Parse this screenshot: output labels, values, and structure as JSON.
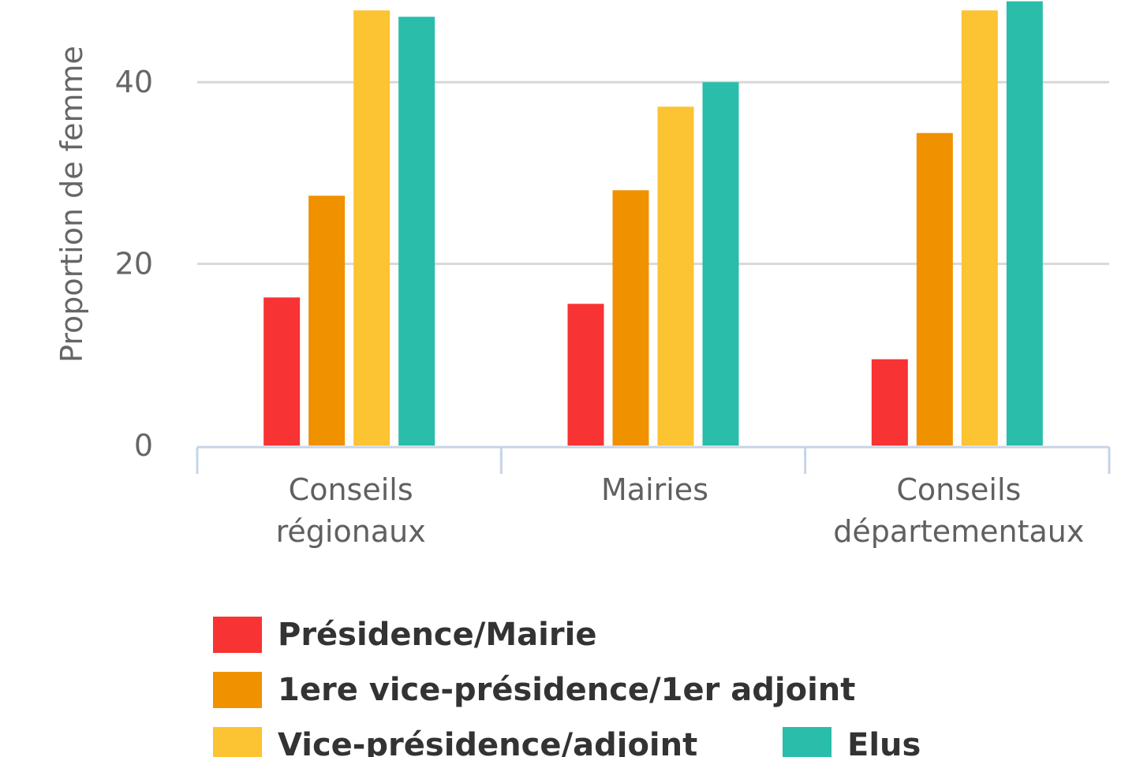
{
  "chart_data": {
    "type": "bar",
    "ylabel": "Proportion de femme",
    "yticks": [
      "0",
      "20",
      "40"
    ],
    "ylim": [
      0,
      48
    ],
    "grid": true,
    "legend_position": "bottom",
    "categories": [
      [
        "Conseils",
        "régionaux"
      ],
      [
        "Mairies"
      ],
      [
        "Conseils",
        "départementaux"
      ]
    ],
    "series": [
      {
        "name": "Présidence/Mairie",
        "color": "#f73333",
        "values": [
          16.3,
          15.6,
          9.5
        ]
      },
      {
        "name": "1ere vice-présidence/1er adjoint",
        "color": "#f09100",
        "values": [
          27.5,
          28.1,
          34.4
        ]
      },
      {
        "name": "Vice-présidence/adjoint",
        "color": "#fcc332",
        "values": [
          47.9,
          37.3,
          47.9
        ]
      },
      {
        "name": "Elus",
        "color": "#29bdaa",
        "values": [
          47.2,
          40.0,
          48.9
        ]
      }
    ]
  }
}
